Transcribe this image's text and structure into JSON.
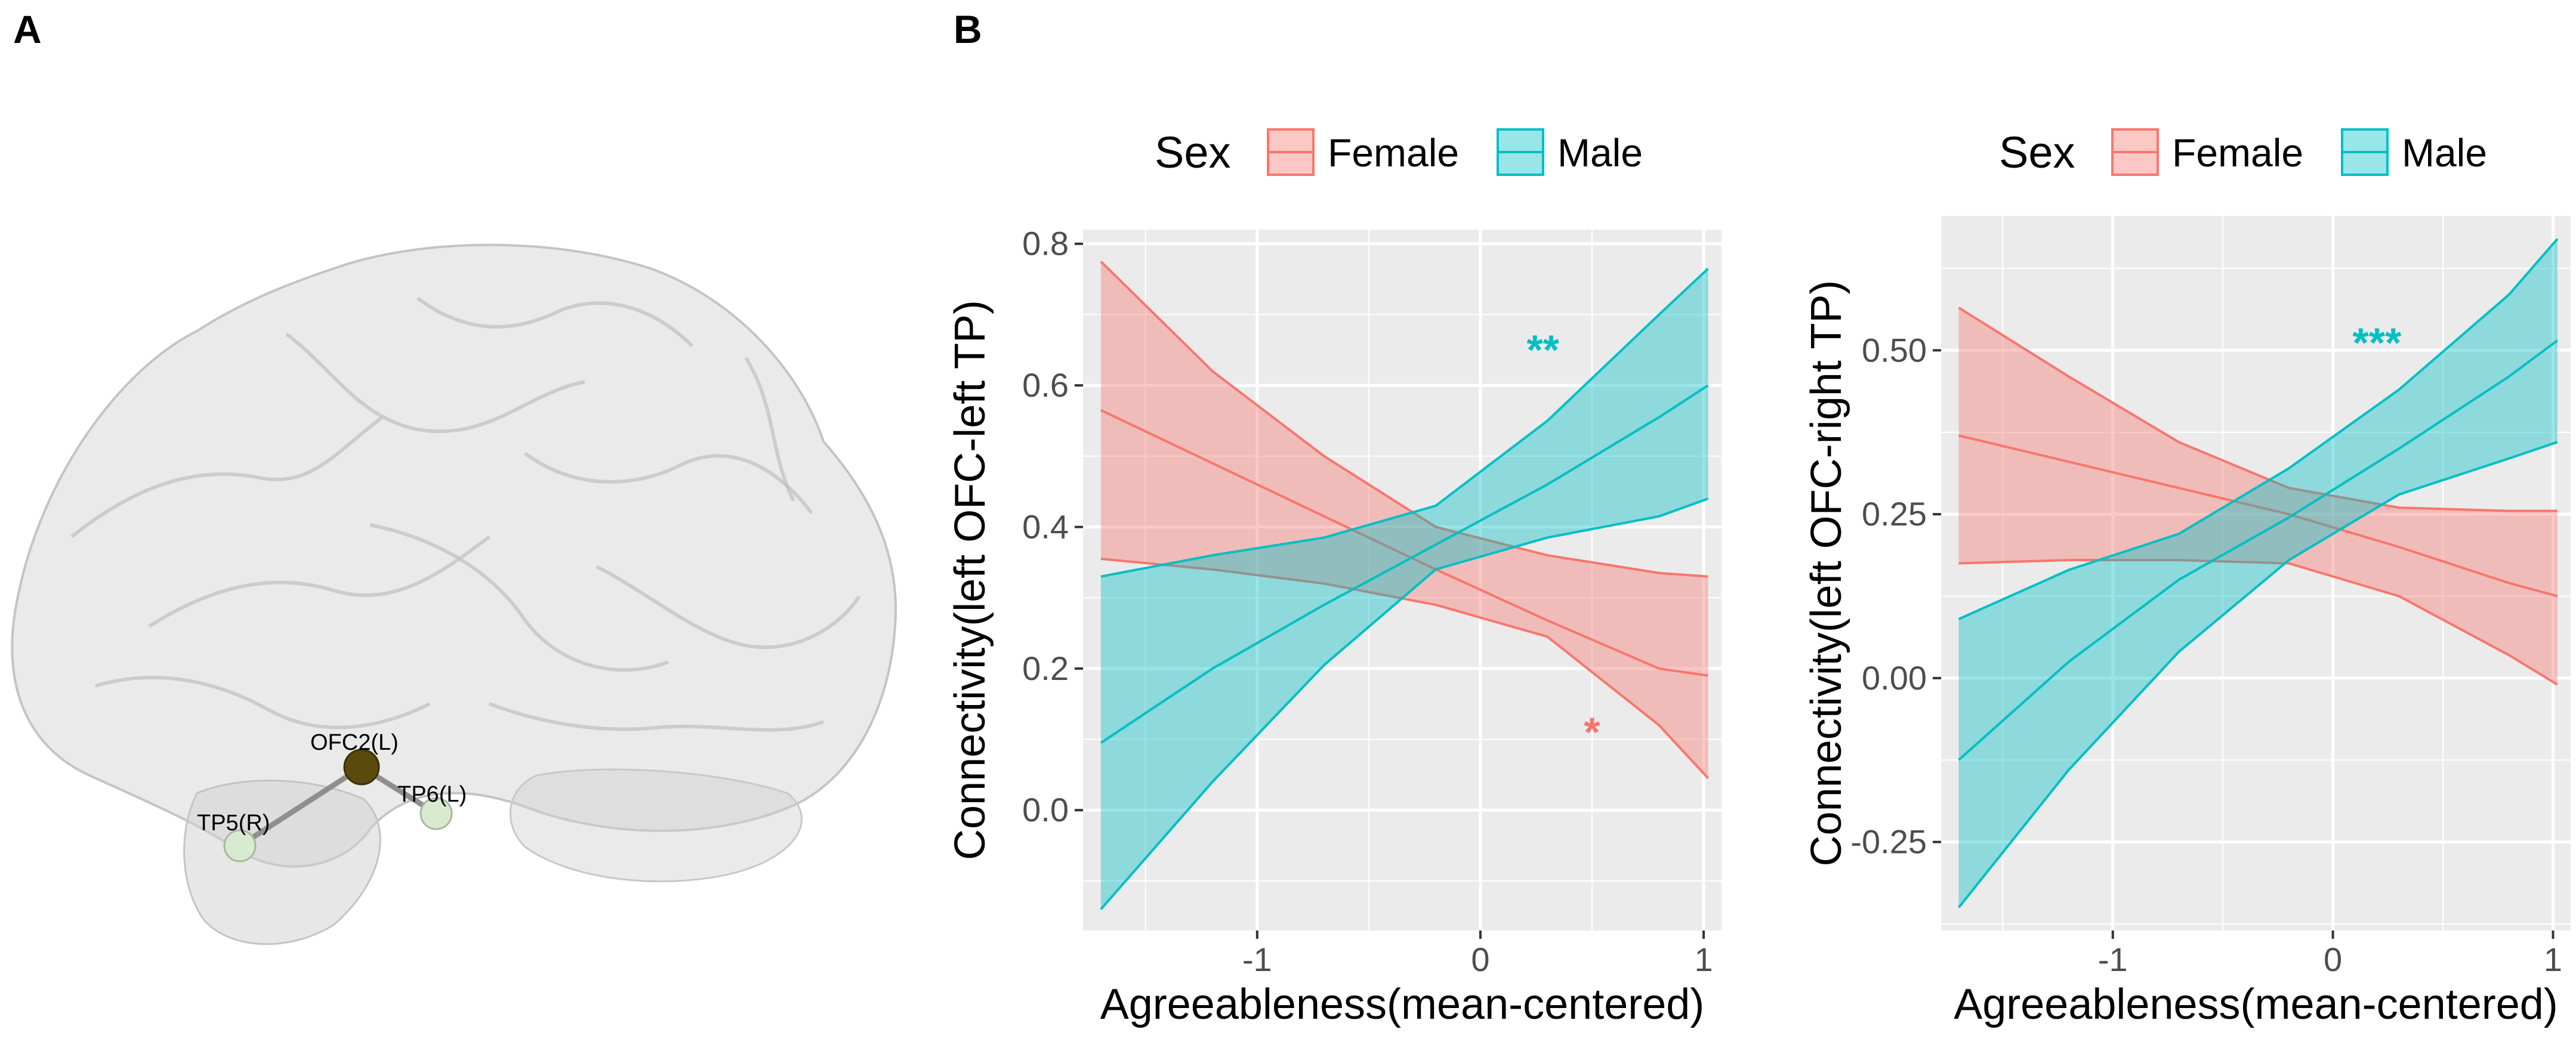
{
  "panel_labels": {
    "a": "A",
    "b": "B"
  },
  "brain": {
    "nodes": [
      {
        "id": "ofc2",
        "label": "OFC2(L)",
        "color": "#5a4a0c"
      },
      {
        "id": "tp6",
        "label": "TP6(L)",
        "color": "#d8ead0"
      },
      {
        "id": "tp5",
        "label": "TP5(R)",
        "color": "#d8ead0"
      }
    ]
  },
  "colors": {
    "female": "#f8766d",
    "male": "#00bfc4",
    "panel_bg": "#ebebeb",
    "grid": "#ffffff"
  },
  "chart_data": [
    {
      "type": "line",
      "title": "",
      "legend": {
        "title": "Sex",
        "entries": [
          "Female",
          "Male"
        ],
        "position": "top"
      },
      "xlabel": "Agreeableness(mean-centered)",
      "ylabel": "Connectivity(left OFC-left TP)",
      "xlim": [
        -1.78,
        1.08
      ],
      "ylim": [
        -0.17,
        0.82
      ],
      "x_ticks": [
        -1,
        0,
        1
      ],
      "x_tick_labels": [
        "-1",
        "0",
        "1"
      ],
      "y_ticks": [
        0.0,
        0.2,
        0.4,
        0.6,
        0.8
      ],
      "y_tick_labels": [
        "0.0",
        "0.2",
        "0.4",
        "0.6",
        "0.8"
      ],
      "x": [
        -1.7,
        -1.2,
        -0.7,
        -0.2,
        0.3,
        0.8,
        1.02
      ],
      "series": [
        {
          "name": "Female",
          "fit": [
            0.565,
            0.49,
            0.415,
            0.34,
            0.268,
            0.2,
            0.19
          ],
          "lower": [
            0.355,
            0.34,
            0.32,
            0.29,
            0.245,
            0.12,
            0.045
          ],
          "upper": [
            0.775,
            0.62,
            0.5,
            0.4,
            0.36,
            0.335,
            0.33
          ]
        },
        {
          "name": "Male",
          "fit": [
            0.095,
            0.2,
            0.29,
            0.375,
            0.46,
            0.555,
            0.6
          ],
          "lower": [
            -0.14,
            0.04,
            0.205,
            0.34,
            0.385,
            0.415,
            0.44
          ],
          "upper": [
            0.33,
            0.36,
            0.385,
            0.43,
            0.55,
            0.7,
            0.765
          ]
        }
      ],
      "annotations": [
        {
          "text": "**",
          "series": "Male",
          "x": 0.28,
          "y": 0.63
        },
        {
          "text": "*",
          "series": "Female",
          "x": 0.5,
          "y": 0.09
        }
      ]
    },
    {
      "type": "line",
      "title": "",
      "legend": {
        "title": "Sex",
        "entries": [
          "Female",
          "Male"
        ],
        "position": "top"
      },
      "xlabel": "Agreeableness(mean-centered)",
      "ylabel": "Connectivity(left OFC-right TP)",
      "xlim": [
        -1.78,
        1.08
      ],
      "ylim": [
        -0.385,
        0.705
      ],
      "x_ticks": [
        -1,
        0,
        1
      ],
      "x_tick_labels": [
        "-1",
        "0",
        "1"
      ],
      "y_ticks": [
        -0.25,
        0.0,
        0.25,
        0.5
      ],
      "y_tick_labels": [
        "-0.25",
        "0.00",
        "0.25",
        "0.50"
      ],
      "x": [
        -1.7,
        -1.2,
        -0.7,
        -0.2,
        0.3,
        0.8,
        1.02
      ],
      "series": [
        {
          "name": "Female",
          "fit": [
            0.37,
            0.33,
            0.29,
            0.25,
            0.2,
            0.145,
            0.125
          ],
          "lower": [
            0.175,
            0.18,
            0.18,
            0.175,
            0.125,
            0.035,
            -0.01
          ],
          "upper": [
            0.565,
            0.46,
            0.36,
            0.29,
            0.26,
            0.255,
            0.255
          ]
        },
        {
          "name": "Male",
          "fit": [
            -0.125,
            0.025,
            0.15,
            0.245,
            0.35,
            0.46,
            0.515
          ],
          "lower": [
            -0.35,
            -0.14,
            0.04,
            0.18,
            0.28,
            0.335,
            0.36
          ],
          "upper": [
            0.09,
            0.165,
            0.22,
            0.32,
            0.44,
            0.585,
            0.67
          ]
        }
      ],
      "annotations": [
        {
          "text": "***",
          "series": "Male",
          "x": 0.2,
          "y": 0.49
        }
      ]
    }
  ]
}
